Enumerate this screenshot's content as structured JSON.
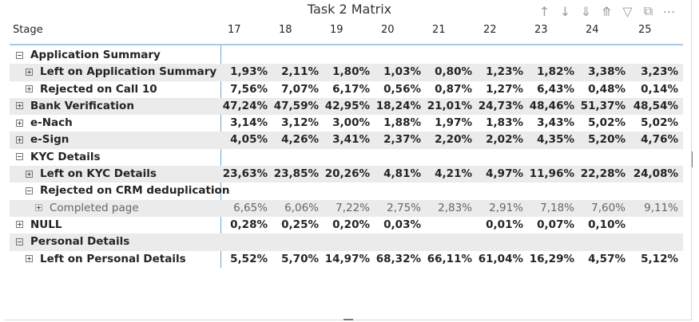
{
  "title": "Task 2 Matrix",
  "toolbar": {
    "icons": [
      "arrow-up-icon",
      "arrow-down-icon",
      "double-arrow-down-icon",
      "expand-hierarchy-icon",
      "filter-icon",
      "focus-mode-icon",
      "more-options-icon"
    ]
  },
  "header": {
    "stage": "Stage",
    "columns": [
      "17",
      "18",
      "19",
      "20",
      "21",
      "22",
      "23",
      "24",
      "25"
    ]
  },
  "rows": [
    {
      "label": "Application Summary",
      "level": 0,
      "toggle": "minus",
      "shade": false,
      "style": "bold",
      "values": [
        "",
        "",
        "",
        "",
        "",
        "",
        "",
        "",
        ""
      ]
    },
    {
      "label": "Left on Application Summary",
      "level": 1,
      "toggle": "plus",
      "shade": true,
      "style": "bold",
      "values": [
        "1,93%",
        "2,11%",
        "1,80%",
        "1,03%",
        "0,80%",
        "1,23%",
        "1,82%",
        "3,38%",
        "3,23%"
      ]
    },
    {
      "label": "Rejected on Call 10",
      "level": 1,
      "toggle": "plus",
      "shade": false,
      "style": "bold",
      "values": [
        "7,56%",
        "7,07%",
        "6,17%",
        "0,56%",
        "0,87%",
        "1,27%",
        "6,43%",
        "0,48%",
        "0,14%"
      ]
    },
    {
      "label": "Bank Verification",
      "level": 0,
      "toggle": "plus",
      "shade": true,
      "style": "bold",
      "values": [
        "47,24%",
        "47,59%",
        "42,95%",
        "18,24%",
        "21,01%",
        "24,73%",
        "48,46%",
        "51,37%",
        "48,54%"
      ]
    },
    {
      "label": "e-Nach",
      "level": 0,
      "toggle": "plus",
      "shade": false,
      "style": "bold",
      "values": [
        "3,14%",
        "3,12%",
        "3,00%",
        "1,88%",
        "1,97%",
        "1,83%",
        "3,43%",
        "5,02%",
        "5,02%"
      ]
    },
    {
      "label": "e-Sign",
      "level": 0,
      "toggle": "plus",
      "shade": true,
      "style": "bold",
      "values": [
        "4,05%",
        "4,26%",
        "3,41%",
        "2,37%",
        "2,20%",
        "2,02%",
        "4,35%",
        "5,20%",
        "4,76%"
      ]
    },
    {
      "label": "KYC Details",
      "level": 0,
      "toggle": "minus",
      "shade": false,
      "style": "bold",
      "values": [
        "",
        "",
        "",
        "",
        "",
        "",
        "",
        "",
        ""
      ]
    },
    {
      "label": "Left on KYC Details",
      "level": 1,
      "toggle": "plus",
      "shade": true,
      "style": "bold",
      "values": [
        "23,63%",
        "23,85%",
        "20,26%",
        "4,81%",
        "4,21%",
        "4,97%",
        "11,96%",
        "22,28%",
        "24,08%"
      ]
    },
    {
      "label": "Rejected on CRM deduplication",
      "level": 1,
      "toggle": "minus",
      "shade": false,
      "style": "bold",
      "values": [
        "",
        "",
        "",
        "",
        "",
        "",
        "",
        "",
        ""
      ]
    },
    {
      "label": "Completed page",
      "level": 2,
      "toggle": "plus",
      "shade": true,
      "style": "light",
      "values": [
        "6,65%",
        "6,06%",
        "7,22%",
        "2,75%",
        "2,83%",
        "2,91%",
        "7,18%",
        "7,60%",
        "9,11%"
      ]
    },
    {
      "label": "NULL",
      "level": 0,
      "toggle": "plus",
      "shade": false,
      "style": "bold",
      "values": [
        "0,28%",
        "0,25%",
        "0,20%",
        "0,03%",
        "",
        "0,01%",
        "0,07%",
        "0,10%",
        ""
      ]
    },
    {
      "label": "Personal Details",
      "level": 0,
      "toggle": "minus",
      "shade": true,
      "style": "bold",
      "values": [
        "",
        "",
        "",
        "",
        "",
        "",
        "",
        "",
        ""
      ]
    },
    {
      "label": "Left on Personal Details",
      "level": 1,
      "toggle": "plus",
      "shade": false,
      "style": "bold",
      "values": [
        "5,52%",
        "5,70%",
        "14,97%",
        "68,32%",
        "66,11%",
        "61,04%",
        "16,29%",
        "4,57%",
        "5,12%"
      ]
    }
  ]
}
